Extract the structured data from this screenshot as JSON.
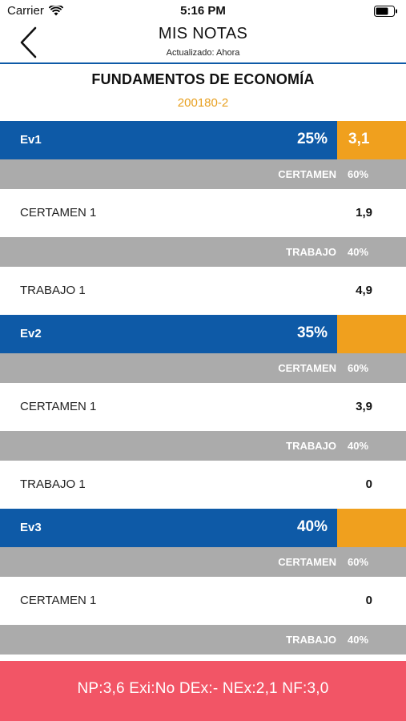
{
  "status": {
    "carrier": "Carrier",
    "time": "5:16 PM"
  },
  "header": {
    "title": "MIS NOTAS",
    "subtitle": "Actualizado: Ahora"
  },
  "course": {
    "name": "FUNDAMENTOS DE ECONOMÍA",
    "code": "200180-2"
  },
  "evaluations": [
    {
      "name": "Ev1",
      "percent": "25%",
      "grade": "3,1",
      "groups": [
        {
          "category": "CERTAMEN",
          "percent": "60%",
          "items": [
            {
              "name": "CERTAMEN 1",
              "grade": "1,9"
            }
          ]
        },
        {
          "category": "TRABAJO",
          "percent": "40%",
          "items": [
            {
              "name": "TRABAJO 1",
              "grade": "4,9"
            }
          ]
        }
      ]
    },
    {
      "name": "Ev2",
      "percent": "35%",
      "grade": "",
      "groups": [
        {
          "category": "CERTAMEN",
          "percent": "60%",
          "items": [
            {
              "name": "CERTAMEN 1",
              "grade": "3,9"
            }
          ]
        },
        {
          "category": "TRABAJO",
          "percent": "40%",
          "items": [
            {
              "name": "TRABAJO 1",
              "grade": "0"
            }
          ]
        }
      ]
    },
    {
      "name": "Ev3",
      "percent": "40%",
      "grade": "",
      "groups": [
        {
          "category": "CERTAMEN",
          "percent": "60%",
          "items": [
            {
              "name": "CERTAMEN 1",
              "grade": "0"
            }
          ]
        },
        {
          "category": "TRABAJO",
          "percent": "40%",
          "items": []
        }
      ]
    }
  ],
  "footer": {
    "summary": "NP:3,6 Exi:No DEx:- NEx:2,1 NF:3,0"
  },
  "colors": {
    "primary": "#0e5aa7",
    "accent": "#f0a01e",
    "category_bg": "#ababab",
    "footer_bg": "#f25566"
  },
  "icons": {
    "back": "chevron-left-icon",
    "wifi": "wifi-icon",
    "battery": "battery-icon"
  }
}
